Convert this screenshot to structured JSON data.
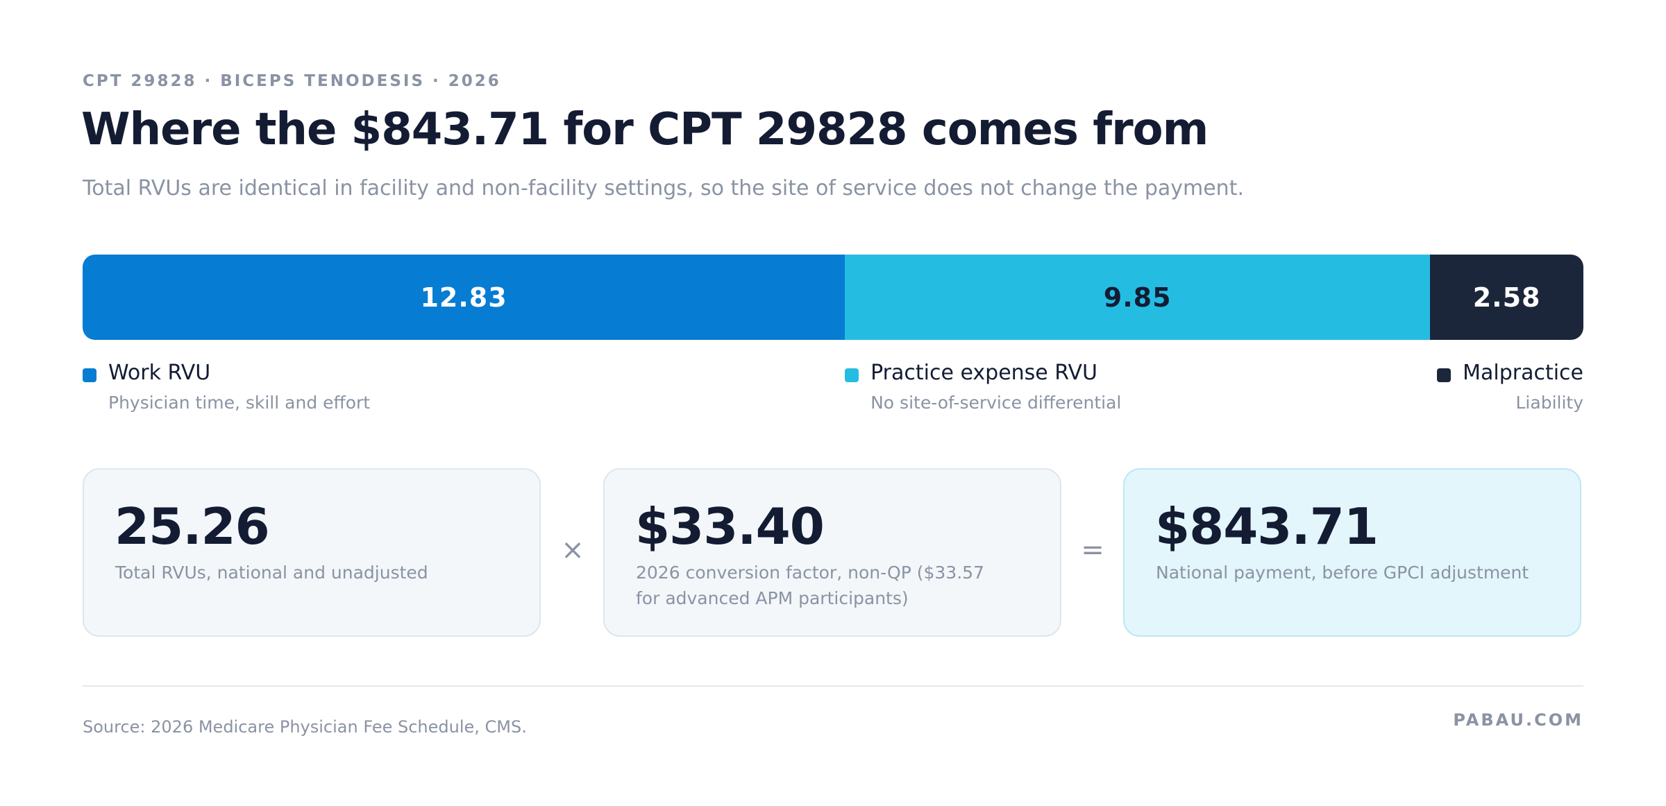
{
  "eyebrow": "CPT 29828 · BICEPS TENODESIS · 2026",
  "chart_data": {
    "type": "stacked_bar",
    "title": "Where the $843.71 for CPT 29828 comes from",
    "subtitle": "Total RVUs are identical in facility and non-facility settings, so the site of service does not change the payment.",
    "series": [
      {
        "name": "Work RVU",
        "description": "Physician time, skill and effort",
        "color": "#077cd3",
        "text_color": "#ffffff",
        "values": [
          12.83
        ]
      },
      {
        "name": "Practice expense RVU",
        "description": "No site-of-service differential",
        "color": "#25bce2",
        "text_color": "#131c33",
        "values": [
          9.85
        ]
      },
      {
        "name": "Malpractice",
        "description": "Liability",
        "color": "#1c263b",
        "text_color": "#ffffff",
        "values": [
          2.58
        ]
      }
    ]
  },
  "equation": {
    "terms": [
      {
        "value": "25.26",
        "caption": "Total RVUs, national and unadjusted"
      },
      {
        "value": "$33.40",
        "caption": "2026 conversion factor, non-QP ($33.57 for advanced APM participants)"
      },
      {
        "value": "$843.71",
        "caption": "National payment, before GPCI adjustment"
      }
    ],
    "operators": [
      "×",
      "="
    ]
  },
  "footer": {
    "source": "Source: 2026 Medicare Physician Fee Schedule, CMS.",
    "brand": "PABAU.COM"
  }
}
